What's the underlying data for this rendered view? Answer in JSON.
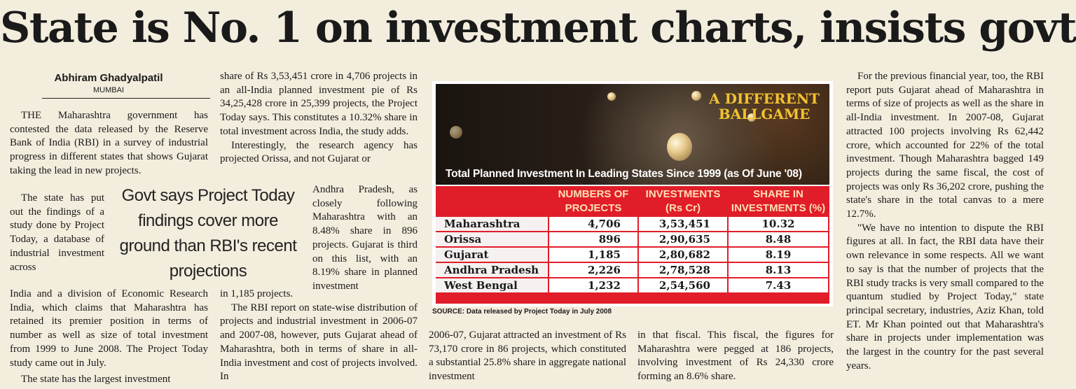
{
  "headline": "State is No. 1 on investment charts, insists govt",
  "byline": "Abhiram Ghadyalpatil",
  "dateline": "MUMBAI",
  "col1": {
    "p1": "THE Maharashtra government has contested the data released by the Reserve Bank of India (RBI) in a survey of industrial progress in different states that shows Gujarat taking the lead in new projects.",
    "p2a": "The state has put out the findings of a study done by Project Today, a database of industrial investment across",
    "p2b": "India and a division of Economic Research India, which claims that Maharashtra has retained its premier position in terms of number as well as size of total investment from 1999 to June 2008. The Project Today study came out in July.",
    "p3": "The state has the largest investment"
  },
  "pullquote": "Govt says Project Today findings cover more ground than RBI's recent projections",
  "col2": {
    "p1": "share of Rs 3,53,451 crore in 4,706 projects in an all-India planned investment pie of Rs 34,25,428 crore in 25,399 projects, the Project Today says. This constitutes a 10.32% share in total investment across India, the study adds.",
    "p2a": "Interestingly, the research agency has projected Orissa, and not Gujarat or",
    "p2b": "Andhra Pradesh, as closely following Maharashtra with an 8.48% share in 896 projects. Gujarat is third on this list, with an 8.19% share in planned investment",
    "p2c": "in 1,185 projects.",
    "p3": "The RBI report on state-wise distribution of projects and industrial investment in 2006-07 and 2007-08, however, puts Gujarat ahead of Maharashtra, both in terms of share in all-India investment and cost of projects involved. In"
  },
  "col3": {
    "p1": "2006-07, Gujarat attracted an investment of Rs 73,170 crore in 86 projects, which constituted a substantial 25.8% share in aggregate national investment"
  },
  "col4": {
    "p1": "in that fiscal. This fiscal, the figures for Maharashtra were pegged at 186 projects, involving investment of Rs 24,330 crore forming an 8.6% share."
  },
  "col5": {
    "p1": "For the previous financial year, too, the RBI report puts Gujarat ahead of Maharashtra in terms of size of projects as well as the share in all-India investment. In 2007-08, Gujarat attracted 100 projects involving Rs 62,442 crore, which accounted for 22% of the total investment. Though Maharashtra bagged 149 projects during the same fiscal, the cost of projects was only Rs 36,202 crore, pushing the state's share in the total canvas to a mere 12.7%.",
    "p2": "\"We have no intention to dispute the RBI figures at all. In fact, the RBI data have their own relevance in some respects. All we want to say is that the number of projects that the RBI study tracks is very small compared to the quantum studied by Project Today,\" state principal secretary, industries, Aziz Khan, told ET. Mr Khan pointed out that Maharashtra's share in projects under implementation was the largest in the country for the past several years."
  },
  "infographic": {
    "title_line1": "A DIFFERENT",
    "title_line2": "BALLGAME",
    "caption": "Total Planned Investment In Leading States Since 1999 (as Of June '08)",
    "headers": [
      "NUMBERS OF PROJECTS",
      "INVESTMENTS (Rs Cr)",
      "SHARE IN INVESTMENTS (%)"
    ],
    "rows": [
      {
        "state": "Maharashtra",
        "projects": "4,706",
        "investment": "3,53,451",
        "share": "10.32"
      },
      {
        "state": "Orissa",
        "projects": "896",
        "investment": "2,90,635",
        "share": "8.48"
      },
      {
        "state": "Gujarat",
        "projects": "1,185",
        "investment": "2,80,682",
        "share": "8.19"
      },
      {
        "state": "Andhra Pradesh",
        "projects": "2,226",
        "investment": "2,78,528",
        "share": "8.13"
      },
      {
        "state": "West Bengal",
        "projects": "1,232",
        "investment": "2,54,560",
        "share": "7.43"
      }
    ],
    "source_label": "SOURCE:",
    "source_text": "Data released by Project Today in July 2008"
  }
}
